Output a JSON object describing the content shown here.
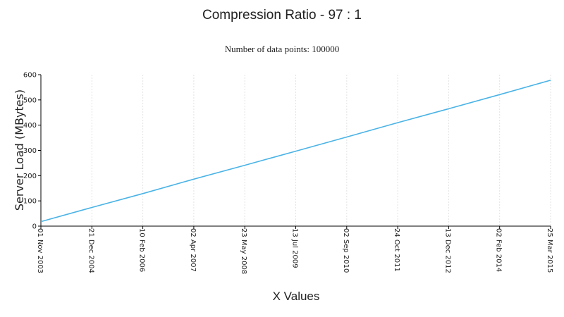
{
  "chart_data": {
    "type": "line",
    "title": "Compression Ratio - 97 : 1",
    "subtitle": "Number of data points: 100000",
    "xlabel": "X Values",
    "ylabel": "Server Load (MBytes)",
    "ylim": [
      0,
      600
    ],
    "yticks": [
      "0",
      "100",
      "200",
      "300",
      "400",
      "500",
      "600"
    ],
    "xticks": [
      "01 Nov 2003",
      "21 Dec 2004",
      "10 Feb 2006",
      "02 Apr 2007",
      "23 May 2008",
      "13 Jul 2009",
      "02 Sep 2010",
      "24 Oct 2011",
      "13 Dec 2012",
      "02 Feb 2014",
      "25 Mar 2015"
    ],
    "grid": true,
    "series": [
      {
        "color": "#4ab3e6",
        "points": [
          {
            "x": "01 Nov 2003",
            "y": 18
          },
          {
            "x": "21 Dec 2004",
            "y": 74
          },
          {
            "x": "10 Feb 2006",
            "y": 129
          },
          {
            "x": "02 Apr 2007",
            "y": 186
          },
          {
            "x": "23 May 2008",
            "y": 241
          },
          {
            "x": "13 Jul 2009",
            "y": 297
          },
          {
            "x": "02 Sep 2010",
            "y": 353
          },
          {
            "x": "24 Oct 2011",
            "y": 410
          },
          {
            "x": "13 Dec 2012",
            "y": 465
          },
          {
            "x": "02 Feb 2014",
            "y": 521
          },
          {
            "x": "25 Mar 2015",
            "y": 578
          }
        ]
      }
    ]
  }
}
